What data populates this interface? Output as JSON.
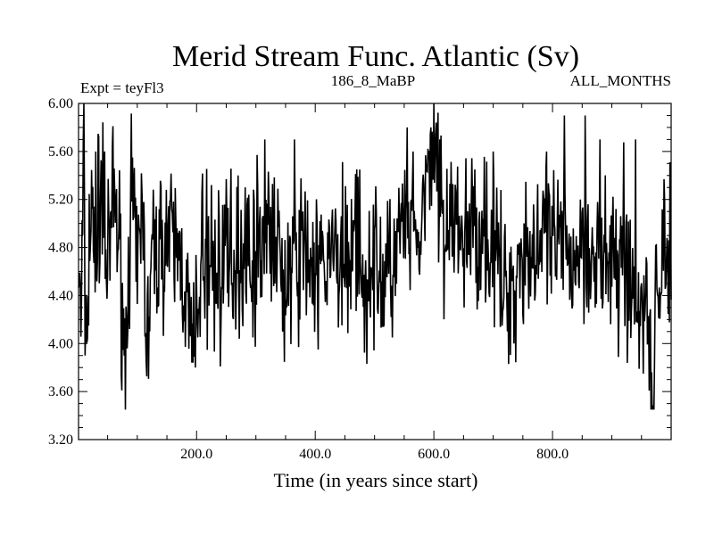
{
  "chart_data": {
    "type": "line",
    "title": "Merid Stream Func. Atlantic (Sv)",
    "subtitle_left": "Expt = teyFl3",
    "subtitle_center": "186_8_MaBP",
    "subtitle_right": "ALL_MONTHS",
    "xlabel": "Time (in years since start)",
    "ylabel": "",
    "xlim": [
      1,
      1000
    ],
    "ylim": [
      3.2,
      6.0
    ],
    "x_ticks": [
      200,
      400,
      600,
      800
    ],
    "x_tick_labels": [
      "200.0",
      "400.0",
      "600.0",
      "800.0"
    ],
    "y_ticks": [
      3.2,
      3.6,
      4.0,
      4.4,
      4.8,
      5.2,
      5.6,
      6.0
    ],
    "y_tick_labels": [
      "3.20",
      "3.60",
      "4.00",
      "4.40",
      "4.80",
      "5.20",
      "5.60",
      "6.00"
    ],
    "grid": false,
    "series": [
      {
        "name": "Merid Stream Func. Atlantic",
        "color": "#000000",
        "noise_seed": 7,
        "noise_amplitude": 0.32,
        "anchors": [
          [
            1,
            4.65
          ],
          [
            5,
            4.1
          ],
          [
            10,
            5.5
          ],
          [
            15,
            3.9
          ],
          [
            20,
            5.1
          ],
          [
            30,
            4.7
          ],
          [
            40,
            5.4
          ],
          [
            50,
            4.5
          ],
          [
            60,
            5.3
          ],
          [
            70,
            4.8
          ],
          [
            80,
            3.9
          ],
          [
            90,
            5.2
          ],
          [
            100,
            4.5
          ],
          [
            110,
            5.3
          ],
          [
            115,
            3.85
          ],
          [
            125,
            4.7
          ],
          [
            150,
            4.9
          ],
          [
            175,
            4.7
          ],
          [
            195,
            3.85
          ],
          [
            210,
            4.8
          ],
          [
            230,
            4.6
          ],
          [
            260,
            4.7
          ],
          [
            300,
            4.8
          ],
          [
            320,
            5.0
          ],
          [
            350,
            4.5
          ],
          [
            380,
            4.8
          ],
          [
            400,
            4.6
          ],
          [
            430,
            4.7
          ],
          [
            460,
            4.75
          ],
          [
            480,
            4.6
          ],
          [
            500,
            4.7
          ],
          [
            520,
            4.5
          ],
          [
            550,
            5.0
          ],
          [
            570,
            4.7
          ],
          [
            590,
            5.3
          ],
          [
            600,
            5.6
          ],
          [
            620,
            4.9
          ],
          [
            650,
            4.9
          ],
          [
            680,
            5.0
          ],
          [
            700,
            4.8
          ],
          [
            720,
            4.4
          ],
          [
            740,
            4.7
          ],
          [
            760,
            4.8
          ],
          [
            800,
            4.8
          ],
          [
            830,
            4.7
          ],
          [
            860,
            4.9
          ],
          [
            880,
            4.7
          ],
          [
            900,
            4.6
          ],
          [
            920,
            4.8
          ],
          [
            945,
            4.2
          ],
          [
            960,
            4.5
          ],
          [
            968,
            3.5
          ],
          [
            975,
            4.4
          ],
          [
            985,
            4.7
          ],
          [
            1000,
            4.7
          ]
        ],
        "spikes": [
          [
            600,
            6.0
          ],
          [
            595,
            5.8
          ],
          [
            610,
            5.7
          ],
          [
            555,
            5.8
          ],
          [
            565,
            5.6
          ],
          [
            820,
            5.9
          ],
          [
            855,
            5.9
          ],
          [
            940,
            5.7
          ],
          [
            880,
            5.7
          ],
          [
            790,
            5.6
          ],
          [
            315,
            5.7
          ],
          [
            365,
            5.7
          ],
          [
            700,
            5.6
          ],
          [
            30,
            5.6
          ],
          [
            45,
            5.6
          ],
          [
            92,
            5.55
          ],
          [
            470,
            5.45
          ],
          [
            270,
            5.4
          ],
          [
            405,
            3.95
          ],
          [
            530,
            4.05
          ],
          [
            735,
            4.0
          ],
          [
            970,
            3.48
          ],
          [
            198,
            3.8
          ],
          [
            115,
            3.85
          ],
          [
            78,
            3.9
          ],
          [
            12,
            3.9
          ],
          [
            295,
            4.05
          ],
          [
            345,
            4.1
          ]
        ]
      }
    ]
  }
}
